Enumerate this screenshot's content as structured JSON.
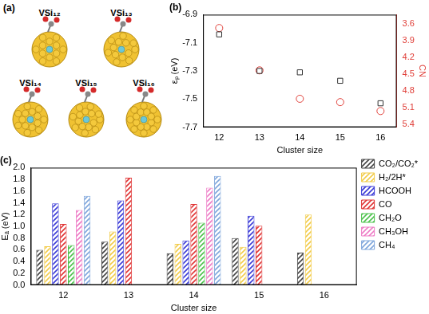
{
  "diagram": {
    "title": "(a)",
    "structures": [
      "VSi₁₂",
      "VSi₁₃",
      "VSi₁₄",
      "VSi₁₅",
      "VSi₁₆"
    ]
  },
  "chart_data": [
    {
      "type": "scatter",
      "title": "(b)",
      "x_label": "Cluster size",
      "y_label": "εₚ (eV)",
      "y2_label": "CN",
      "x": [
        12,
        13,
        14,
        15,
        16
      ],
      "xlim": [
        11.6,
        16.4
      ],
      "xticks": [
        12,
        13,
        14,
        15,
        16
      ],
      "ylim": [
        -7.7,
        -6.9
      ],
      "yticks": [
        -7.7,
        -7.5,
        -7.3,
        -7.1,
        -6.9
      ],
      "y2lim": [
        5.45,
        3.43
      ],
      "y2ticks": [
        3.6,
        3.9,
        4.2,
        4.5,
        4.8,
        5.1,
        5.4
      ],
      "grid": false,
      "series": [
        {
          "color": "#333333",
          "marker": "square",
          "values": [
            -7.04,
            -7.3,
            -7.31,
            -7.37,
            -7.53
          ]
        },
        {
          "color": "#e0403a",
          "marker": "circle",
          "axis": "y2",
          "values": [
            3.67,
            4.43,
            4.94,
            5.0,
            5.16
          ]
        }
      ]
    },
    {
      "type": "bar",
      "title": "(c)",
      "x_label": "Cluster size",
      "y_label": "Eₐ (eV)",
      "categories": [
        "12",
        "13",
        "14",
        "15",
        "16"
      ],
      "ylim": [
        0,
        2.0
      ],
      "yticks": [
        {
          "value": 0,
          "label": "0.0"
        },
        0.2,
        0.4,
        0.6,
        0.8,
        {
          "value": 1.0,
          "label": "1.0"
        },
        1.2,
        1.4,
        1.6,
        1.8,
        {
          "value": 2.0,
          "label": "2.0"
        }
      ],
      "grid": false,
      "legend": "right",
      "series": [
        {
          "name": "CO₂/CO₂*",
          "color": "#444444",
          "values": [
            0.6,
            0.74,
            0.54,
            0.8,
            0.55
          ]
        },
        {
          "name": "H₂/2H*",
          "color": "#f2cc4a",
          "values": [
            0.66,
            0.91,
            0.7,
            0.65,
            1.2
          ]
        },
        {
          "name": "HCOOH",
          "color": "#3b3bd6",
          "values": [
            1.39,
            1.44,
            0.76,
            1.18,
            null
          ]
        },
        {
          "name": "CO",
          "color": "#e03535",
          "values": [
            1.04,
            1.83,
            1.38,
            1.01,
            null
          ]
        },
        {
          "name": "CH₂O",
          "color": "#4cc24c",
          "values": [
            0.68,
            null,
            1.06,
            null,
            null
          ]
        },
        {
          "name": "CH₃OH",
          "color": "#ee7cc6",
          "values": [
            1.28,
            null,
            1.66,
            null,
            null
          ]
        },
        {
          "name": "CH₄",
          "color": "#7fa6dc",
          "values": [
            1.52,
            null,
            1.86,
            null,
            null
          ]
        }
      ]
    }
  ]
}
